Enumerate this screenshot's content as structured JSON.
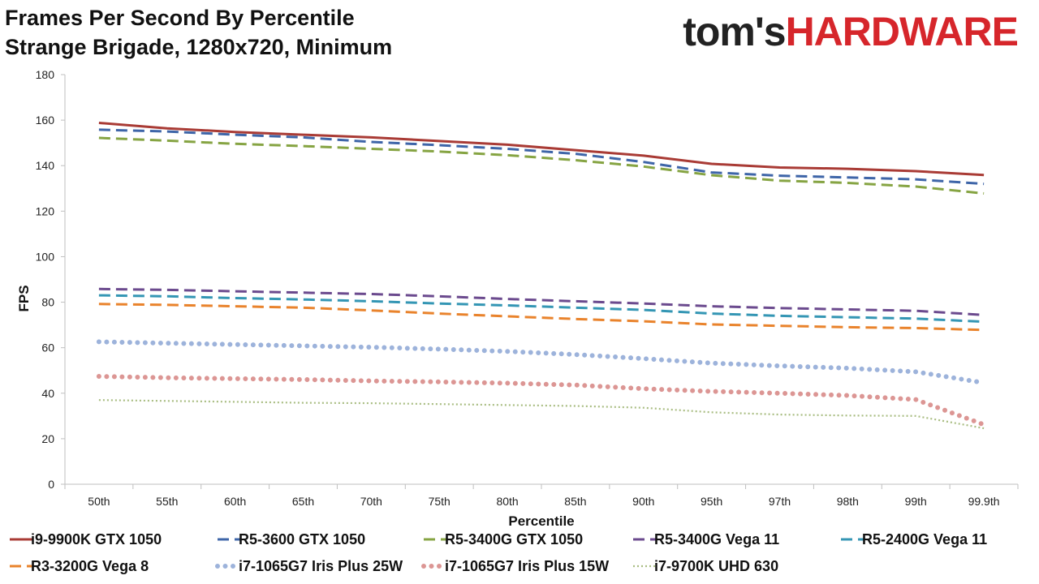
{
  "title": {
    "line1": "Frames Per Second By Percentile",
    "line2": "Strange Brigade, 1280x720, Minimum"
  },
  "logo": {
    "part1": "tom's",
    "part2": "HARDWARE"
  },
  "chart_data": {
    "type": "line",
    "title": "Frames Per Second By Percentile",
    "subtitle": "Strange Brigade, 1280x720, Minimum",
    "xlabel": "Percentile",
    "ylabel": "FPS",
    "ylim": [
      0,
      180
    ],
    "yticks": [
      0,
      20,
      40,
      60,
      80,
      100,
      120,
      140,
      160,
      180
    ],
    "grid": false,
    "legend_position": "bottom",
    "categories": [
      "50th",
      "55th",
      "60th",
      "65th",
      "70th",
      "75th",
      "80th",
      "85th",
      "90th",
      "95th",
      "97th",
      "98th",
      "99th",
      "99.9th"
    ],
    "series": [
      {
        "name": "i9-9900K GTX 1050",
        "color": "#a93b35",
        "style": "solid",
        "values": [
          158.8,
          156.4,
          154.8,
          153.6,
          152.4,
          150.8,
          149.2,
          146.8,
          144.4,
          140.8,
          139.2,
          138.6,
          137.6,
          135.9
        ]
      },
      {
        "name": "R5-3600 GTX 1050",
        "color": "#3e65a8",
        "style": "dashed",
        "values": [
          155.8,
          155.0,
          153.6,
          152.4,
          150.4,
          149.0,
          147.4,
          145.2,
          141.6,
          137.0,
          135.6,
          134.8,
          134.0,
          132.0
        ]
      },
      {
        "name": "R5-3400G GTX 1050",
        "color": "#86a443",
        "style": "dashed",
        "values": [
          152.2,
          151.0,
          149.6,
          148.6,
          147.4,
          146.2,
          144.6,
          142.4,
          139.6,
          135.8,
          133.4,
          132.4,
          130.8,
          127.8
        ]
      },
      {
        "name": "R5-3400G Vega 11",
        "color": "#6b4a8e",
        "style": "dashed",
        "values": [
          85.8,
          85.4,
          84.8,
          84.2,
          83.6,
          82.6,
          81.4,
          80.4,
          79.4,
          78.2,
          77.4,
          76.8,
          76.2,
          74.4
        ]
      },
      {
        "name": "R5-2400G Vega 11",
        "color": "#3496b4",
        "style": "dashed",
        "values": [
          83.0,
          82.6,
          81.8,
          81.2,
          80.4,
          79.4,
          78.6,
          77.6,
          76.6,
          75.0,
          74.0,
          73.4,
          72.8,
          71.4
        ]
      },
      {
        "name": "R3-3200G Vega 8",
        "color": "#e9832c",
        "style": "dashed",
        "values": [
          79.2,
          78.8,
          78.2,
          77.6,
          76.4,
          75.0,
          73.8,
          72.6,
          71.6,
          70.2,
          69.6,
          69.0,
          68.6,
          67.8
        ]
      },
      {
        "name": "i7-1065G7 Iris Plus 25W",
        "color": "#9db3db",
        "style": "dotted",
        "values": [
          62.6,
          62.0,
          61.4,
          60.8,
          60.2,
          59.4,
          58.4,
          57.0,
          55.2,
          53.2,
          52.0,
          51.0,
          49.4,
          44.6
        ]
      },
      {
        "name": "i7-1065G7 Iris Plus 15W",
        "color": "#dc9694",
        "style": "dotted",
        "values": [
          47.4,
          46.8,
          46.4,
          46.0,
          45.4,
          45.0,
          44.4,
          43.6,
          42.0,
          40.8,
          40.0,
          39.0,
          37.2,
          26.2
        ]
      },
      {
        "name": "i7-9700K UHD 630",
        "color": "#a9bd82",
        "style": "finedot",
        "values": [
          37.0,
          36.6,
          36.2,
          35.8,
          35.6,
          35.2,
          34.8,
          34.4,
          33.6,
          31.6,
          30.6,
          30.2,
          30.0,
          24.6
        ]
      }
    ]
  }
}
